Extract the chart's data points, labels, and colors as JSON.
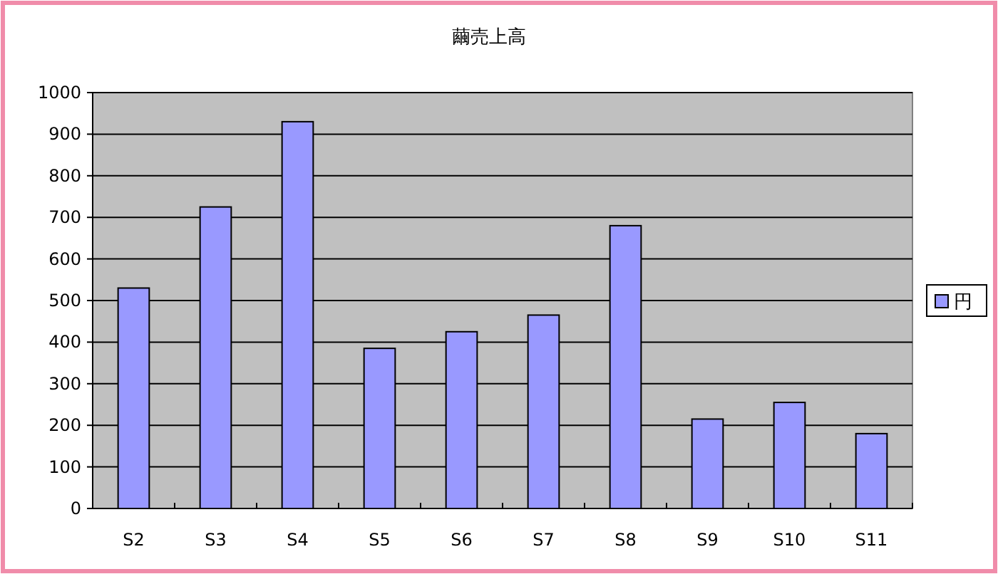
{
  "chart_data": {
    "type": "bar",
    "title": "繭売上高",
    "categories": [
      "S2",
      "S3",
      "S4",
      "S5",
      "S6",
      "S7",
      "S8",
      "S9",
      "S10",
      "S11"
    ],
    "series": [
      {
        "name": "円",
        "color": "#9999ff",
        "values": [
          530,
          725,
          930,
          385,
          425,
          465,
          680,
          215,
          255,
          180
        ]
      }
    ],
    "ylim": [
      0,
      1000
    ],
    "yticks": [
      0,
      100,
      200,
      300,
      400,
      500,
      600,
      700,
      800,
      900,
      1000
    ],
    "grid": "y",
    "legend": "right"
  }
}
